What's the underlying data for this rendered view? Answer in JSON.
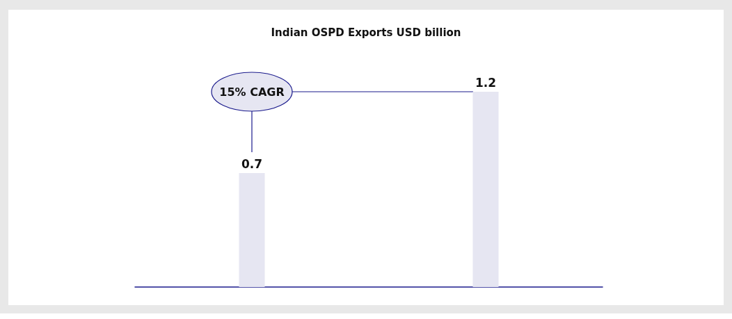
{
  "chart_data": {
    "type": "bar",
    "title": "Indian OSPD Exports USD billion",
    "categories": [
      null,
      null
    ],
    "values": [
      0.7,
      1.2
    ],
    "color": "#e6e6f2",
    "data_labels": true,
    "annotations": [
      "15% CAGR"
    ]
  }
}
